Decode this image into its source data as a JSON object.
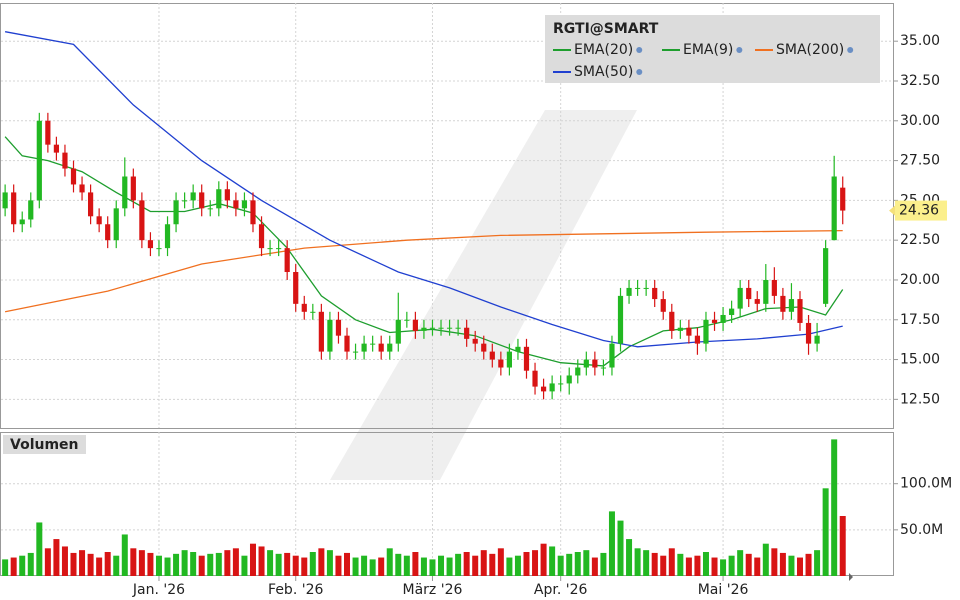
{
  "chart_data": [
    {
      "type": "candlestick",
      "title": "RGTI@SMART",
      "up_color": "#22b822",
      "down_color": "#d81414",
      "grid": true,
      "xlim": [
        -0.6,
        98.5
      ],
      "ylim": [
        10.7,
        37.4
      ],
      "yticks": [
        {
          "value": 12.5,
          "label": "12.50"
        },
        {
          "value": 15,
          "label": "15.00"
        },
        {
          "value": 17.5,
          "label": "17.50"
        },
        {
          "value": 20,
          "label": "20.00"
        },
        {
          "value": 22.5,
          "label": "22.50"
        },
        {
          "value": 25,
          "label": "25.00"
        },
        {
          "value": 27.5,
          "label": "27.50"
        },
        {
          "value": 30,
          "label": "30.00"
        },
        {
          "value": 32.5,
          "label": "32.50"
        },
        {
          "value": 35,
          "label": "35.00"
        }
      ],
      "open": [
        24.5,
        25.5,
        23.5,
        23.8,
        25,
        30,
        28.5,
        28,
        27,
        26,
        25.5,
        24,
        23.5,
        22.5,
        24.5,
        26.5,
        25,
        22.5,
        22,
        22,
        23.5,
        25,
        25,
        25.5,
        24.5,
        24.5,
        25.7,
        25,
        24.5,
        25,
        23.5,
        22,
        22,
        22,
        20.5,
        18.5,
        18,
        18,
        15.5,
        17.5,
        16.5,
        15.5,
        15.5,
        16,
        16,
        15.5,
        16,
        17.5,
        17.5,
        16.8,
        17,
        17,
        17,
        17,
        17,
        16.3,
        16,
        15.5,
        15,
        14.5,
        15.5,
        15.8,
        14.3,
        13.3,
        13,
        13.5,
        13.5,
        14,
        14.5,
        15,
        14.5,
        14.5,
        16,
        19,
        19.5,
        19.5,
        19.5,
        18.8,
        18,
        16.8,
        17,
        16.5,
        16,
        17.5,
        17.3,
        17.8,
        18.2,
        19.5,
        18.8,
        18.5,
        20,
        19,
        18,
        18.8,
        17.3,
        16,
        18.5,
        22.5,
        25.8
      ],
      "high": [
        26,
        26,
        24.3,
        25.5,
        30.5,
        30.5,
        29,
        28.5,
        27.5,
        26.5,
        26,
        24.5,
        24,
        25,
        27.7,
        27,
        25.5,
        23,
        22.5,
        24,
        25.5,
        25.5,
        26,
        26,
        25,
        26.2,
        26.2,
        25.5,
        25.5,
        25.5,
        24,
        22.5,
        22.5,
        22.5,
        21,
        19,
        18.5,
        18.5,
        18,
        18,
        17,
        16,
        16.5,
        16.5,
        16.5,
        16.5,
        19.2,
        18,
        18,
        17.5,
        17.5,
        17.5,
        17.5,
        17.5,
        17.5,
        16.8,
        16.5,
        16,
        15.5,
        16,
        16.3,
        16.3,
        14.8,
        13.8,
        14,
        14,
        14.5,
        15,
        15.5,
        15.5,
        15,
        16.5,
        19.5,
        20,
        20,
        20,
        20,
        19.3,
        18.5,
        17.5,
        17.5,
        17,
        18,
        18,
        18.3,
        18.7,
        20,
        20,
        19.3,
        21,
        20.8,
        19.5,
        19.8,
        19.3,
        17.8,
        17.3,
        22.5,
        27.8,
        26.5
      ],
      "low": [
        24,
        23,
        23,
        23.3,
        24.5,
        28,
        27.5,
        26.5,
        25.5,
        25,
        23.5,
        23,
        22,
        22,
        24,
        24.5,
        22,
        21.5,
        21.5,
        21.5,
        23,
        24.5,
        24.5,
        24,
        24,
        24,
        24.5,
        24,
        24,
        23,
        21.5,
        21.5,
        21.5,
        20,
        18,
        17.5,
        17.5,
        15,
        15,
        16,
        15,
        15,
        15,
        15.5,
        15,
        15,
        15.5,
        17,
        16.3,
        16.3,
        16.5,
        16.5,
        16.5,
        16.5,
        15.8,
        15.5,
        15,
        14.5,
        14,
        14,
        15,
        13.8,
        12.8,
        12.5,
        12.5,
        13,
        12.8,
        13.5,
        14,
        14,
        14,
        14,
        15.5,
        18.5,
        19,
        19,
        18.3,
        17.5,
        16.3,
        16.3,
        16,
        15.3,
        15.5,
        16.8,
        16.8,
        17.3,
        17.7,
        18.3,
        18,
        18,
        18.5,
        17.5,
        17.5,
        16.8,
        15.3,
        15.5,
        18.3,
        22.5,
        23.5
      ],
      "close": [
        25.5,
        23.5,
        23.8,
        25,
        30,
        28.5,
        28,
        27,
        26,
        25.5,
        24,
        23.5,
        22.5,
        24.5,
        26.5,
        25,
        22.5,
        22,
        22,
        23.5,
        25,
        25,
        25.5,
        24.5,
        24.5,
        25.7,
        25,
        24.5,
        25,
        23.5,
        22,
        22,
        22,
        20.5,
        18.5,
        18,
        18,
        15.5,
        17.5,
        16.5,
        15.5,
        15.5,
        16,
        16,
        15.5,
        16,
        17.5,
        17.5,
        16.8,
        17,
        17,
        17,
        17,
        17,
        16.3,
        16,
        15.5,
        15,
        14.5,
        15.5,
        15.8,
        14.3,
        13.3,
        13,
        13.5,
        13.5,
        14,
        14.5,
        15,
        14.5,
        14.5,
        16,
        19,
        19.5,
        19.5,
        19.5,
        18.8,
        18,
        16.8,
        17,
        16.5,
        16,
        17.5,
        17.3,
        17.8,
        18.2,
        19.5,
        18.8,
        18.5,
        20,
        19,
        18,
        18.8,
        17.3,
        16,
        16.5,
        22,
        26.5,
        24.36
      ],
      "indicators": [
        {
          "name": "EMA(20)",
          "color": "#1e9e2e",
          "x": [
            0,
            2,
            5,
            9,
            13,
            17,
            21,
            25,
            29,
            33,
            37,
            41,
            45,
            50,
            55,
            60,
            65,
            70,
            73,
            77,
            81,
            85,
            89,
            93,
            96,
            98
          ],
          "values": [
            29.0,
            27.8,
            27.5,
            26.8,
            25.5,
            24.3,
            24.3,
            24.8,
            24.2,
            22.0,
            19.0,
            17.5,
            16.7,
            16.9,
            16.5,
            15.5,
            14.8,
            14.6,
            15.8,
            16.8,
            17.0,
            17.5,
            18.2,
            18.3,
            17.8,
            19.4
          ]
        },
        {
          "name": "EMA(9)",
          "color": "#1e9e2e"
        },
        {
          "name": "SMA(200)",
          "color": "#f07020",
          "x": [
            0,
            12,
            23,
            35,
            47,
            58,
            70,
            82,
            98
          ],
          "values": [
            18.0,
            19.3,
            21.0,
            22.0,
            22.5,
            22.8,
            22.9,
            23.0,
            23.1
          ]
        },
        {
          "name": "SMA(50)",
          "color": "#2040d0",
          "x": [
            0,
            8,
            15,
            23,
            30,
            38,
            46,
            52,
            58,
            64,
            70,
            74,
            81,
            88,
            94,
            98
          ],
          "values": [
            35.6,
            34.8,
            31.0,
            27.5,
            25.0,
            22.5,
            20.5,
            19.5,
            18.3,
            17.2,
            16.2,
            15.8,
            16.1,
            16.3,
            16.6,
            17.1
          ]
        }
      ]
    },
    {
      "type": "bar",
      "title": "Volumen",
      "grid": true,
      "xlim": [
        -0.6,
        98.5
      ],
      "ylim": [
        0,
        156000000.0
      ],
      "yticks": [
        {
          "value": 50000000.0,
          "label": "50.0M"
        },
        {
          "value": 100000000.0,
          "label": "100.0M"
        }
      ],
      "xticks": [
        {
          "value": 18,
          "label": "Jan. '26"
        },
        {
          "value": 34,
          "label": "Feb. '26"
        },
        {
          "value": 50,
          "label": "März '26"
        },
        {
          "value": 65,
          "label": "Apr. '26"
        },
        {
          "value": 84,
          "label": "Mai '26"
        }
      ],
      "values": [
        18000000.0,
        20000000.0,
        22000000.0,
        25000000.0,
        58000000.0,
        30000000.0,
        40000000.0,
        32000000.0,
        25000000.0,
        28000000.0,
        24000000.0,
        20000000.0,
        26000000.0,
        22000000.0,
        45000000.0,
        30000000.0,
        28000000.0,
        25000000.0,
        22000000.0,
        20000000.0,
        24000000.0,
        28000000.0,
        26000000.0,
        22000000.0,
        24000000.0,
        25000000.0,
        28000000.0,
        30000000.0,
        22000000.0,
        35000000.0,
        32000000.0,
        28000000.0,
        24000000.0,
        25000000.0,
        22000000.0,
        20000000.0,
        26000000.0,
        30000000.0,
        28000000.0,
        22000000.0,
        25000000.0,
        20000000.0,
        22000000.0,
        18000000.0,
        20000000.0,
        30000000.0,
        24000000.0,
        22000000.0,
        26000000.0,
        20000000.0,
        18000000.0,
        22000000.0,
        20000000.0,
        24000000.0,
        26000000.0,
        22000000.0,
        28000000.0,
        24000000.0,
        30000000.0,
        20000000.0,
        22000000.0,
        26000000.0,
        28000000.0,
        35000000.0,
        32000000.0,
        22000000.0,
        24000000.0,
        26000000.0,
        28000000.0,
        20000000.0,
        25000000.0,
        70000000.0,
        60000000.0,
        40000000.0,
        30000000.0,
        28000000.0,
        25000000.0,
        22000000.0,
        30000000.0,
        24000000.0,
        20000000.0,
        22000000.0,
        26000000.0,
        20000000.0,
        18000000.0,
        22000000.0,
        28000000.0,
        24000000.0,
        20000000.0,
        35000000.0,
        30000000.0,
        25000000.0,
        22000000.0,
        20000000.0,
        24000000.0,
        28000000.0,
        95000000.0,
        148000000.0,
        65000000.0
      ]
    }
  ]
}
